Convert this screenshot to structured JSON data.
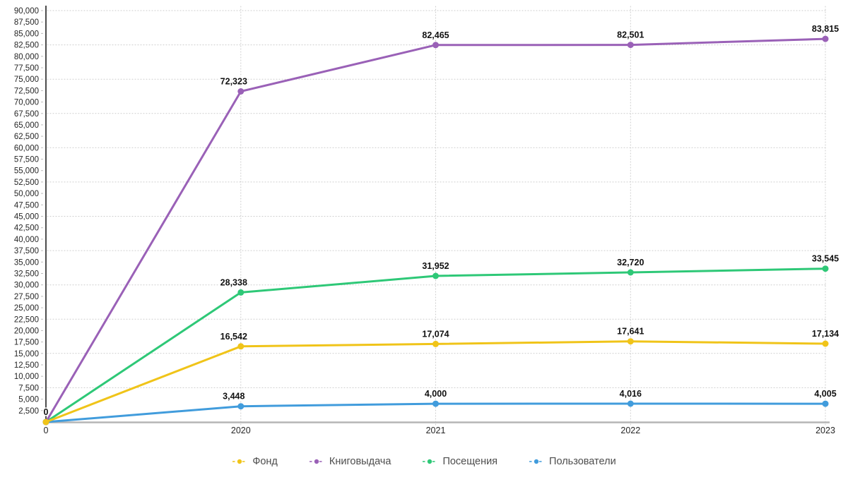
{
  "page": {
    "background": "#ffffff",
    "axis_line_color_y": "#4d4d4d",
    "axis_line_color_x": "#b5b5b5",
    "gridline_color": "#cbcbcb"
  },
  "chart_data": {
    "type": "line",
    "title": "",
    "xlabel": "",
    "ylabel": "",
    "grid": "dotted",
    "legend_position": "bottom",
    "x_categories": [
      "0",
      "2020",
      "2021",
      "2022",
      "2023"
    ],
    "y_axis": {
      "min": 0,
      "max": 90000,
      "tick_step": 2500,
      "grid_step": 7500,
      "tick_labels": [
        "2,500",
        "5,000",
        "7,500",
        "10,000",
        "12,500",
        "15,000",
        "17,500",
        "20,000",
        "22,500",
        "25,000",
        "27,500",
        "30,000",
        "32,500",
        "35,000",
        "37,500",
        "40,000",
        "42,500",
        "45,000",
        "47,500",
        "50,000",
        "52,500",
        "55,000",
        "57,500",
        "60,000",
        "62,500",
        "65,000",
        "67,500",
        "70,000",
        "72,500",
        "75,000",
        "77,500",
        "80,000",
        "82,500",
        "85,000",
        "87,500",
        "90,000"
      ]
    },
    "series": [
      {
        "key": "fond",
        "name": "Фонд",
        "color": "#F0C419",
        "values": [
          0,
          16542,
          17074,
          17641,
          17134
        ],
        "labels": [
          "0",
          "16,542",
          "17,074",
          "17,641",
          "17,134"
        ]
      },
      {
        "key": "knigovydacha",
        "name": "Книговыдача",
        "color": "#9A61B7",
        "values": [
          0,
          72323,
          82465,
          82501,
          83815
        ],
        "labels": [
          "0",
          "72,323",
          "82,465",
          "82,501",
          "83,815"
        ]
      },
      {
        "key": "poseshcheniya",
        "name": "Посещения",
        "color": "#2EC877",
        "values": [
          0,
          28338,
          31952,
          32720,
          33545
        ],
        "labels": [
          "0",
          "28,338",
          "31,952",
          "32,720",
          "33,545"
        ]
      },
      {
        "key": "polzovateli",
        "name": "Пользователи",
        "color": "#419CDC",
        "values": [
          0,
          3448,
          4000,
          4016,
          4005
        ],
        "labels": [
          "0",
          "3,448",
          "4,000",
          "4,016",
          "4,005"
        ]
      }
    ]
  }
}
